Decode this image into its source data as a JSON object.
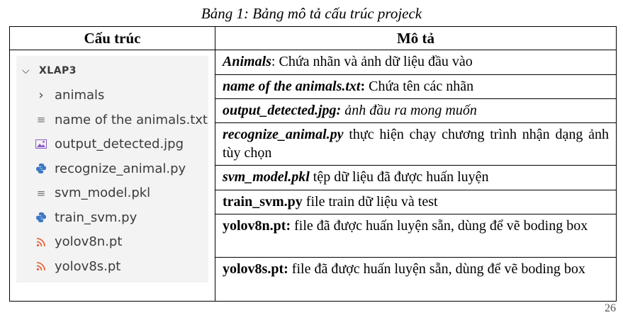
{
  "caption": "Bảng 1: Bảng mô tả cấu trúc projeck",
  "headers": [
    "Cấu trúc",
    "Mô tả"
  ],
  "tree": {
    "root": "XLAP3",
    "items": [
      {
        "label": "animals",
        "icon": "chevron-right-icon"
      },
      {
        "label": "name of the animals.txt",
        "icon": "text-file-icon"
      },
      {
        "label": "output_detected.jpg",
        "icon": "image-file-icon"
      },
      {
        "label": "recognize_animal.py",
        "icon": "python-file-icon"
      },
      {
        "label": "svm_model.pkl",
        "icon": "text-file-icon"
      },
      {
        "label": "train_svm.py",
        "icon": "python-file-icon"
      },
      {
        "label": "yolov8n.pt",
        "icon": "rss-file-icon"
      },
      {
        "label": "yolov8s.pt",
        "icon": "rss-file-icon"
      }
    ]
  },
  "rows": [
    {
      "name": "Animals",
      "sep": ":",
      "desc": " Chứa nhãn và ảnh dữ liệu đầu vào"
    },
    {
      "name": "name of the animals.txt",
      "sep": ":",
      "desc": " Chứa tên các nhãn"
    },
    {
      "name": "output_detected.jpg:",
      "sep": "",
      "desc": " ảnh đầu ra mong muốn"
    },
    {
      "name": "recognize_animal.py",
      "sep": "",
      "desc": " thực hiện chạy chương trình nhận dạng ảnh tùy chọn"
    },
    {
      "name": "svm_model.pkl",
      "sep": "",
      "desc": " tệp dữ liệu đã được huấn luyện"
    },
    {
      "name": "train_svm.py",
      "sep": "",
      "desc": " file train dữ liệu và test"
    },
    {
      "name": "yolov8n.pt:",
      "sep": "",
      "desc": " file đã được huấn luyện sẵn, dùng để vẽ boding box"
    },
    {
      "name": "yolov8s.pt:",
      "sep": "",
      "desc": " file đã được huấn luyện sẵn, dùng để vẽ boding box"
    }
  ],
  "page_number": "26"
}
